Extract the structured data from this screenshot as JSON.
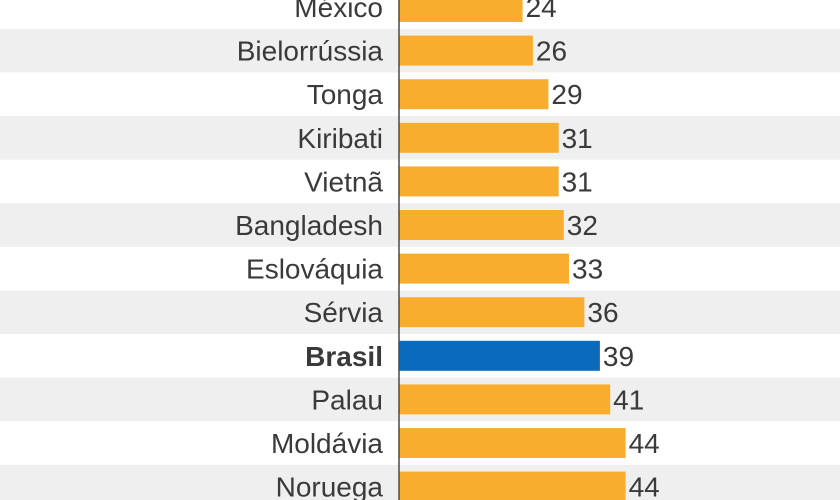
{
  "chart_data": {
    "type": "bar",
    "orientation": "horizontal",
    "categories": [
      "México",
      "Bielorrússia",
      "Tonga",
      "Kiribati",
      "Vietnã",
      "Bangladesh",
      "Eslováquia",
      "Sérvia",
      "Brasil",
      "Palau",
      "Moldávia",
      "Noruega"
    ],
    "values": [
      24,
      26,
      29,
      31,
      31,
      32,
      33,
      36,
      39,
      41,
      44,
      44
    ],
    "highlight": "Brasil",
    "colors": {
      "bar": "#f9ad2f",
      "highlight": "#0a6bbd",
      "stripe": "#efefef",
      "axis": "#4a4a4a",
      "text": "#3a3a3a"
    },
    "title": "",
    "xlabel": "",
    "ylabel": "",
    "xlim": [
      0,
      70
    ],
    "grid": false,
    "legend": "none"
  }
}
